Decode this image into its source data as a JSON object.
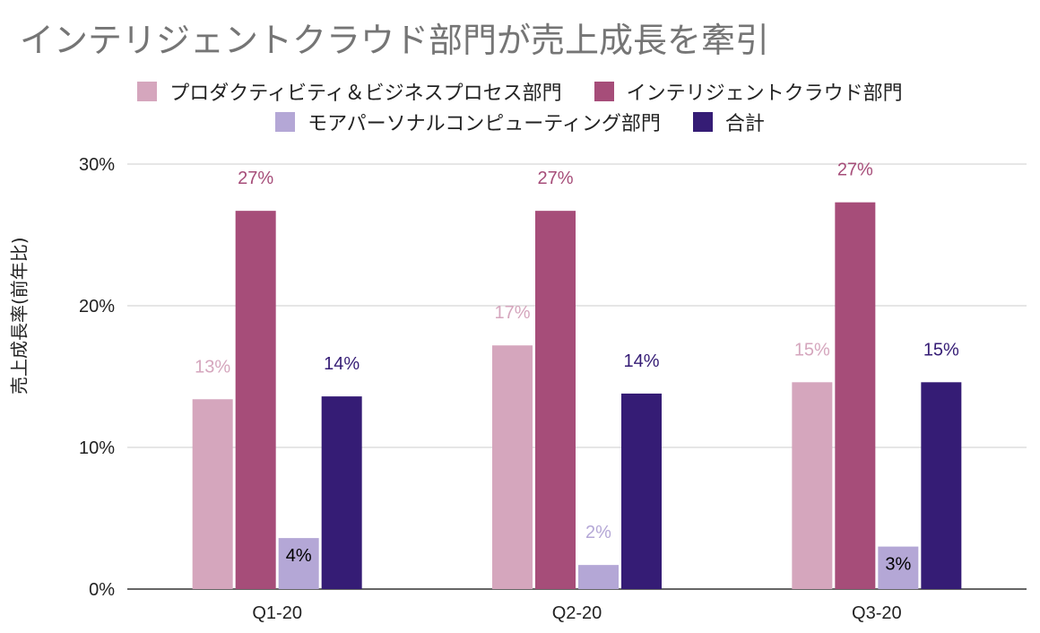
{
  "chart_data": {
    "type": "bar",
    "title": "インテリジェントクラウド部門が売上成長を牽引",
    "ylabel": "売上成長率(前年比)",
    "xlabel": "",
    "categories": [
      "Q1-20",
      "Q2-20",
      "Q3-20"
    ],
    "ylim": [
      0,
      30
    ],
    "yticks": [
      0,
      10,
      20,
      30
    ],
    "ytick_labels": [
      "0%",
      "10%",
      "20%",
      "30%"
    ],
    "grid": true,
    "legend_position": "top",
    "series": [
      {
        "name": "プロダクティビティ＆ビジネスプロセス部門",
        "color": "#d5a6bd",
        "values": [
          13.4,
          17.2,
          14.6
        ],
        "labels": [
          "13%",
          "17%",
          "15%"
        ],
        "label_color": "#d5a6bd",
        "label_inside": false
      },
      {
        "name": "インテリジェントクラウド部門",
        "color": "#a64d79",
        "values": [
          26.7,
          26.7,
          27.3
        ],
        "labels": [
          "27%",
          "27%",
          "27%"
        ],
        "label_color": "#a64d79",
        "label_inside": false
      },
      {
        "name": "モアパーソナルコンピューティング部門",
        "color": "#b4a7d6",
        "values": [
          3.6,
          1.7,
          3.0
        ],
        "labels": [
          "4%",
          "2%",
          "3%"
        ],
        "label_color": "#b4a7d6",
        "label_inside": [
          true,
          false,
          true
        ]
      },
      {
        "name": "合計",
        "color": "#351c75",
        "values": [
          13.6,
          13.8,
          14.6
        ],
        "labels": [
          "14%",
          "14%",
          "15%"
        ],
        "label_color": "#351c75",
        "label_inside": false
      }
    ]
  }
}
